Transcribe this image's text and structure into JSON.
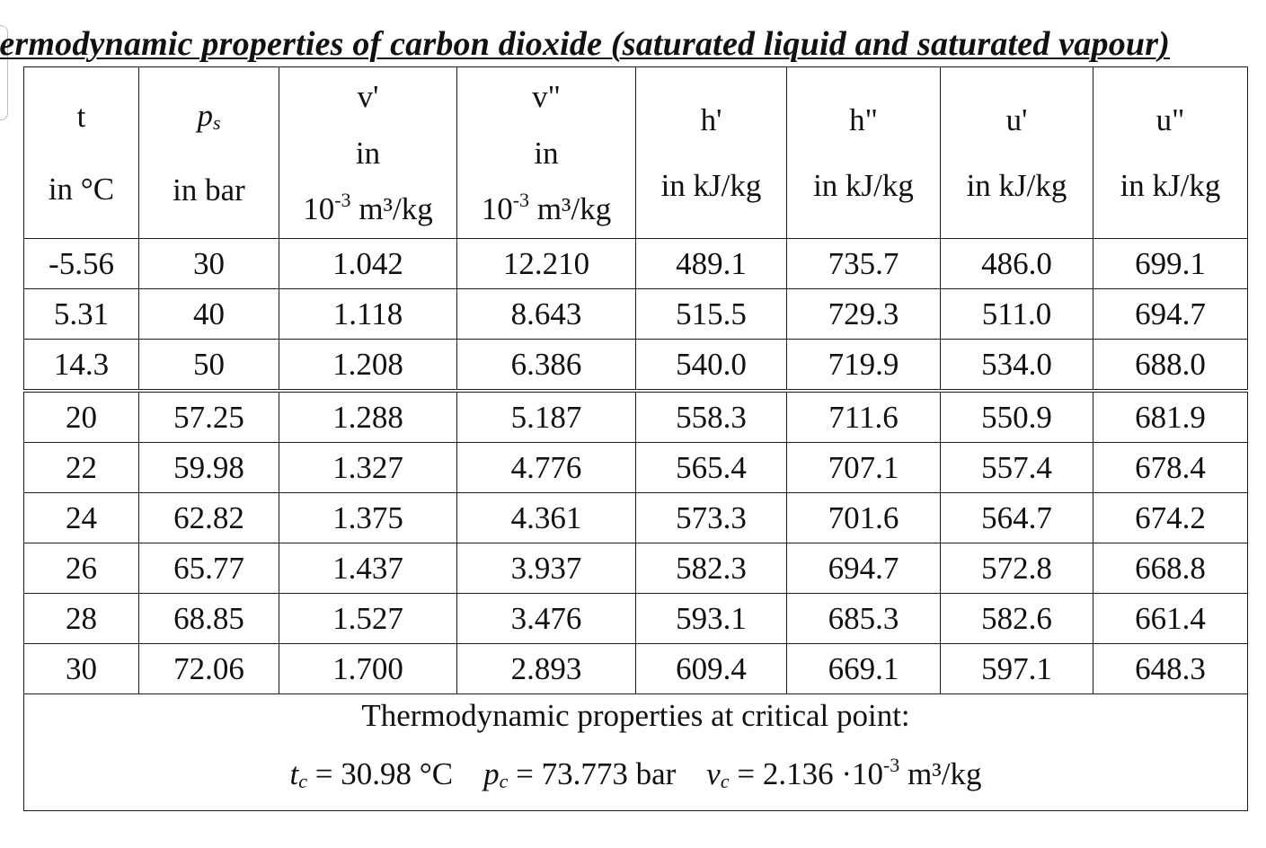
{
  "title": "hermodynamic properties of carbon dioxide (saturated liquid and saturated vapour)",
  "headers": {
    "t": {
      "symbol": "t",
      "unit": "in °C"
    },
    "ps": {
      "symbol": "p",
      "subscript": "s",
      "unit": "in bar"
    },
    "v1": {
      "symbol": "v'",
      "in": "in",
      "exp_base": "10",
      "exp": "-3",
      "unit": "m³/kg"
    },
    "v2": {
      "symbol": "v\"",
      "in": "in",
      "exp_base": "10",
      "exp": "-3",
      "unit": "m³/kg"
    },
    "h1": {
      "symbol": "h'",
      "unit": "in kJ/kg"
    },
    "h2": {
      "symbol": "h\"",
      "unit": "in kJ/kg"
    },
    "u1": {
      "symbol": "u'",
      "unit": "in kJ/kg"
    },
    "u2": {
      "symbol": "u\"",
      "unit": "in kJ/kg"
    }
  },
  "rows": [
    [
      "-5.56",
      "30",
      "1.042",
      "12.210",
      "489.1",
      "735.7",
      "486.0",
      "699.1"
    ],
    [
      "5.31",
      "40",
      "1.118",
      "8.643",
      "515.5",
      "729.3",
      "511.0",
      "694.7"
    ],
    [
      "14.3",
      "50",
      "1.208",
      "6.386",
      "540.0",
      "719.9",
      "534.0",
      "688.0"
    ],
    [
      "20",
      "57.25",
      "1.288",
      "5.187",
      "558.3",
      "711.6",
      "550.9",
      "681.9"
    ],
    [
      "22",
      "59.98",
      "1.327",
      "4.776",
      "565.4",
      "707.1",
      "557.4",
      "678.4"
    ],
    [
      "24",
      "62.82",
      "1.375",
      "4.361",
      "573.3",
      "701.6",
      "564.7",
      "674.2"
    ],
    [
      "26",
      "65.77",
      "1.437",
      "3.937",
      "582.3",
      "694.7",
      "572.8",
      "668.8"
    ],
    [
      "28",
      "68.85",
      "1.527",
      "3.476",
      "593.1",
      "685.3",
      "582.6",
      "661.4"
    ],
    [
      "30",
      "72.06",
      "1.700",
      "2.893",
      "609.4",
      "669.1",
      "597.1",
      "648.3"
    ]
  ],
  "critical": {
    "heading": "Thermodynamic properties at critical point:",
    "tc_symbol": "t",
    "tc_sub": "c",
    "tc_value": "= 30.98 °C",
    "pc_symbol": "p",
    "pc_sub": "c",
    "pc_value": "= 73.773 bar",
    "vc_symbol": "v",
    "vc_sub": "c",
    "vc_value": "= 2.136 ·10",
    "vc_exp": "-3",
    "vc_unit": "m³/kg"
  }
}
